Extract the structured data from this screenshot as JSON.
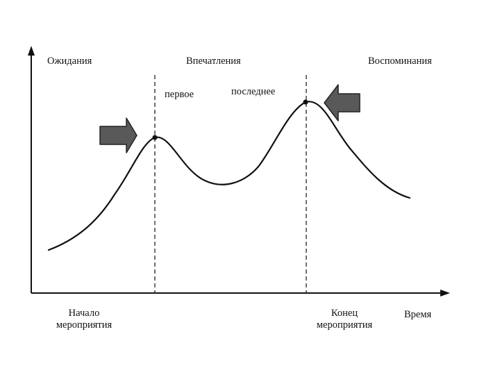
{
  "labels": {
    "expectations": "Ожидания",
    "impressions": "Впечатления",
    "memories": "Воспоминания",
    "first": "первое",
    "last": "последнее",
    "start_line1": "Начало",
    "start_line2": "мероприятия",
    "end_line1": "Конец",
    "end_line2": "мероприятия",
    "time": "Время"
  },
  "colors": {
    "curve": "#111111",
    "axis": "#111111",
    "arrow_fill": "#595959",
    "arrow_stroke": "#222222"
  }
}
